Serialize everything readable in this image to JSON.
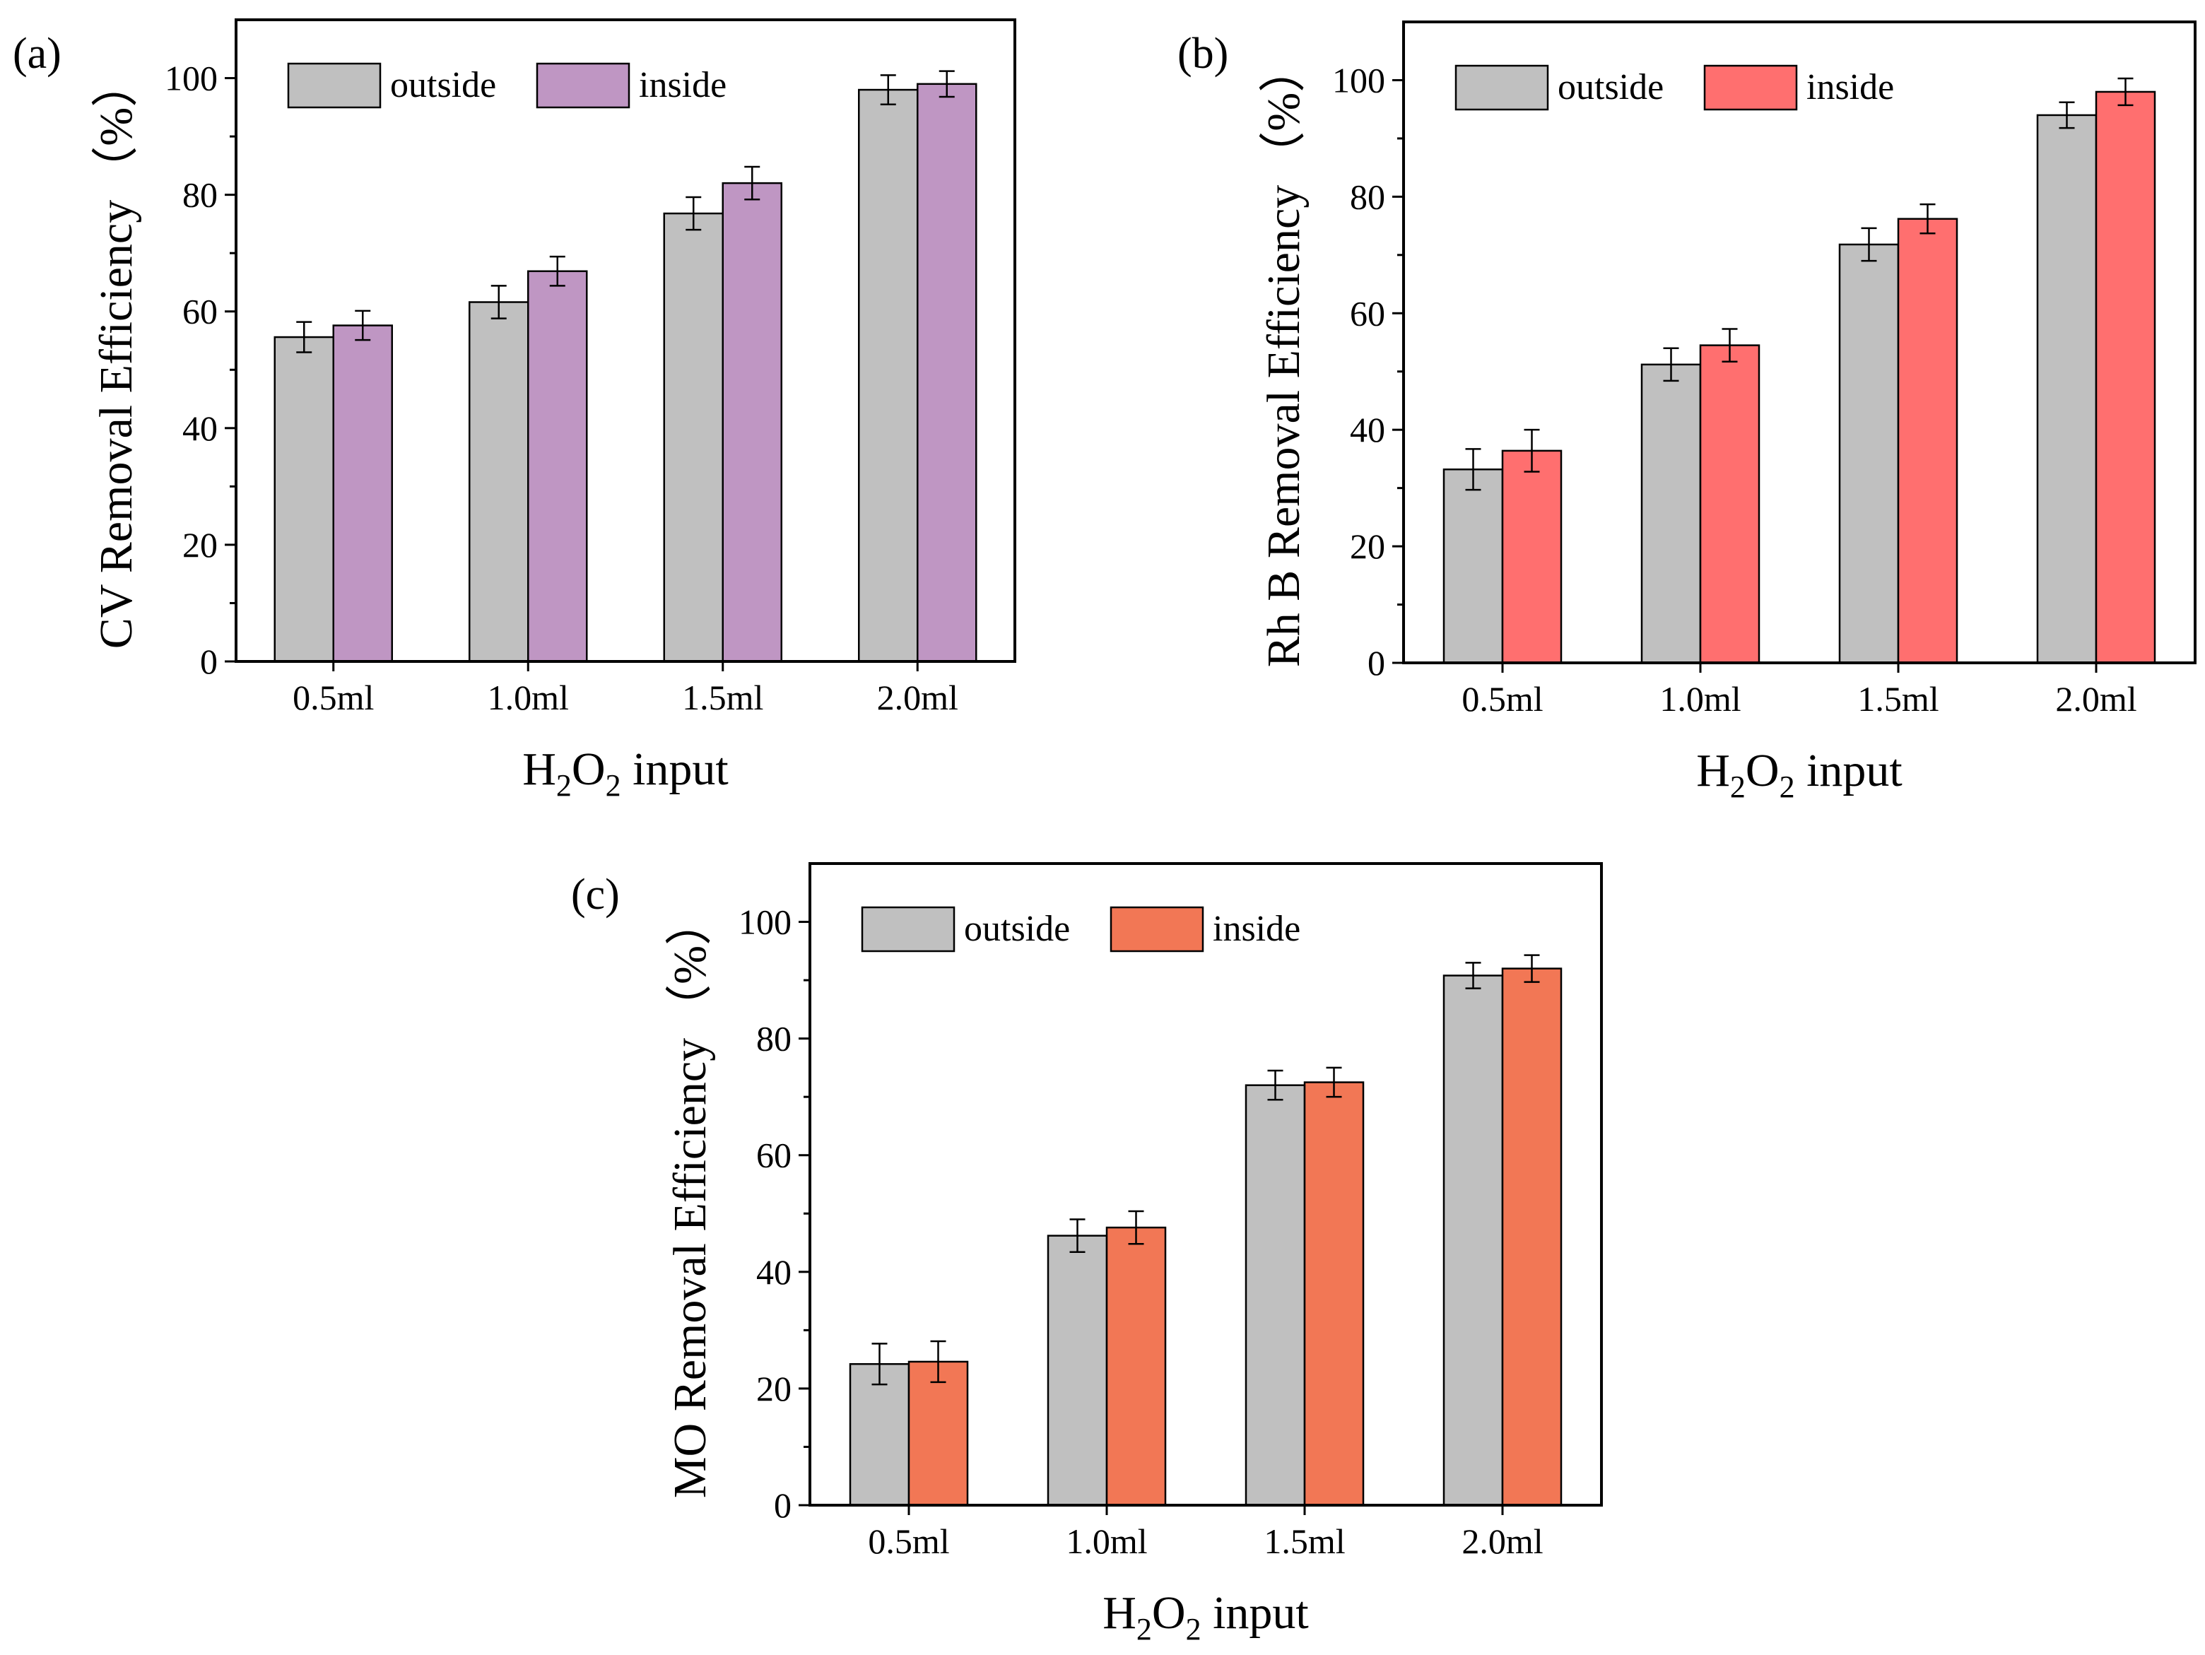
{
  "chart_data": [
    {
      "type": "bar",
      "panel_label": "(a)",
      "categories": [
        "0.5ml",
        "1.0ml",
        "1.5ml",
        "2.0ml"
      ],
      "series": [
        {
          "name": "outside",
          "color": "#c0c0c0",
          "values": [
            55.6,
            61.6,
            76.8,
            98.0
          ],
          "errors": [
            2.6,
            2.8,
            2.8,
            2.5
          ]
        },
        {
          "name": "inside",
          "color": "#bf96c3",
          "values": [
            57.6,
            66.9,
            82.0,
            99.0
          ],
          "errors": [
            2.5,
            2.5,
            2.8,
            2.2
          ]
        }
      ],
      "xlabel": {
        "base": "H",
        "sub1": "2",
        "mid": "O",
        "sub2": "2",
        "rest": " input"
      },
      "ylabel": "CV Removal Efficiency",
      "ylabel_unit": "（%）",
      "ylim": [
        0,
        110
      ],
      "yticks": [
        0,
        20,
        40,
        60,
        80,
        100
      ],
      "legend": "top-left"
    },
    {
      "type": "bar",
      "panel_label": "(b)",
      "categories": [
        "0.5ml",
        "1.0ml",
        "1.5ml",
        "2.0ml"
      ],
      "series": [
        {
          "name": "outside",
          "color": "#c0c0c0",
          "values": [
            33.2,
            51.2,
            71.8,
            94.0
          ],
          "errors": [
            3.5,
            2.8,
            2.8,
            2.2
          ]
        },
        {
          "name": "inside",
          "color": "#ff6f6f",
          "values": [
            36.4,
            54.5,
            76.2,
            98.0
          ],
          "errors": [
            3.6,
            2.8,
            2.5,
            2.3
          ]
        }
      ],
      "xlabel": {
        "base": "H",
        "sub1": "2",
        "mid": "O",
        "sub2": "2",
        "rest": " input"
      },
      "ylabel": "Rh B Removal Efficiency",
      "ylabel_unit": "（%）",
      "ylim": [
        0,
        110
      ],
      "yticks": [
        0,
        20,
        40,
        60,
        80,
        100
      ],
      "legend": "top-left"
    },
    {
      "type": "bar",
      "panel_label": "(c)",
      "categories": [
        "0.5ml",
        "1.0ml",
        "1.5ml",
        "2.0ml"
      ],
      "series": [
        {
          "name": "outside",
          "color": "#c0c0c0",
          "values": [
            24.2,
            46.2,
            72.0,
            90.8
          ],
          "errors": [
            3.5,
            2.8,
            2.5,
            2.2
          ]
        },
        {
          "name": "inside",
          "color": "#f27755",
          "values": [
            24.6,
            47.6,
            72.5,
            92.0
          ],
          "errors": [
            3.5,
            2.8,
            2.5,
            2.3
          ]
        }
      ],
      "xlabel": {
        "base": "H",
        "sub1": "2",
        "mid": "O",
        "sub2": "2",
        "rest": " input"
      },
      "ylabel": "MO Removal Efficiency",
      "ylabel_unit": "（%）",
      "ylim": [
        0,
        110
      ],
      "yticks": [
        0,
        20,
        40,
        60,
        80,
        100
      ],
      "legend": "top-left"
    }
  ]
}
